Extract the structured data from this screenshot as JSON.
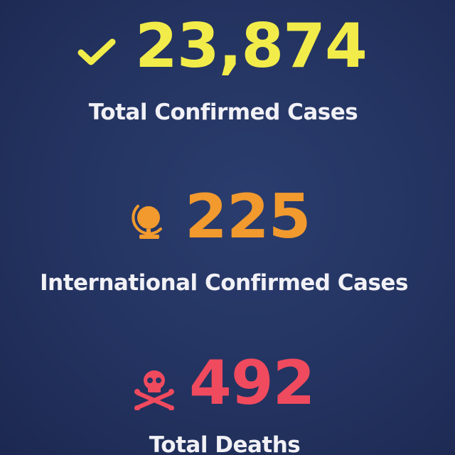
{
  "stats": [
    {
      "value": "23,874",
      "label": "Total Confirmed Cases",
      "icon": "check-icon",
      "color": "#f2ec4a"
    },
    {
      "value": "225",
      "label": "International Confirmed Cases",
      "icon": "globe-icon",
      "color": "#f29a2e"
    },
    {
      "value": "492",
      "label": "Total Deaths",
      "icon": "skull-crossbones-icon",
      "color": "#f04a5e"
    }
  ]
}
